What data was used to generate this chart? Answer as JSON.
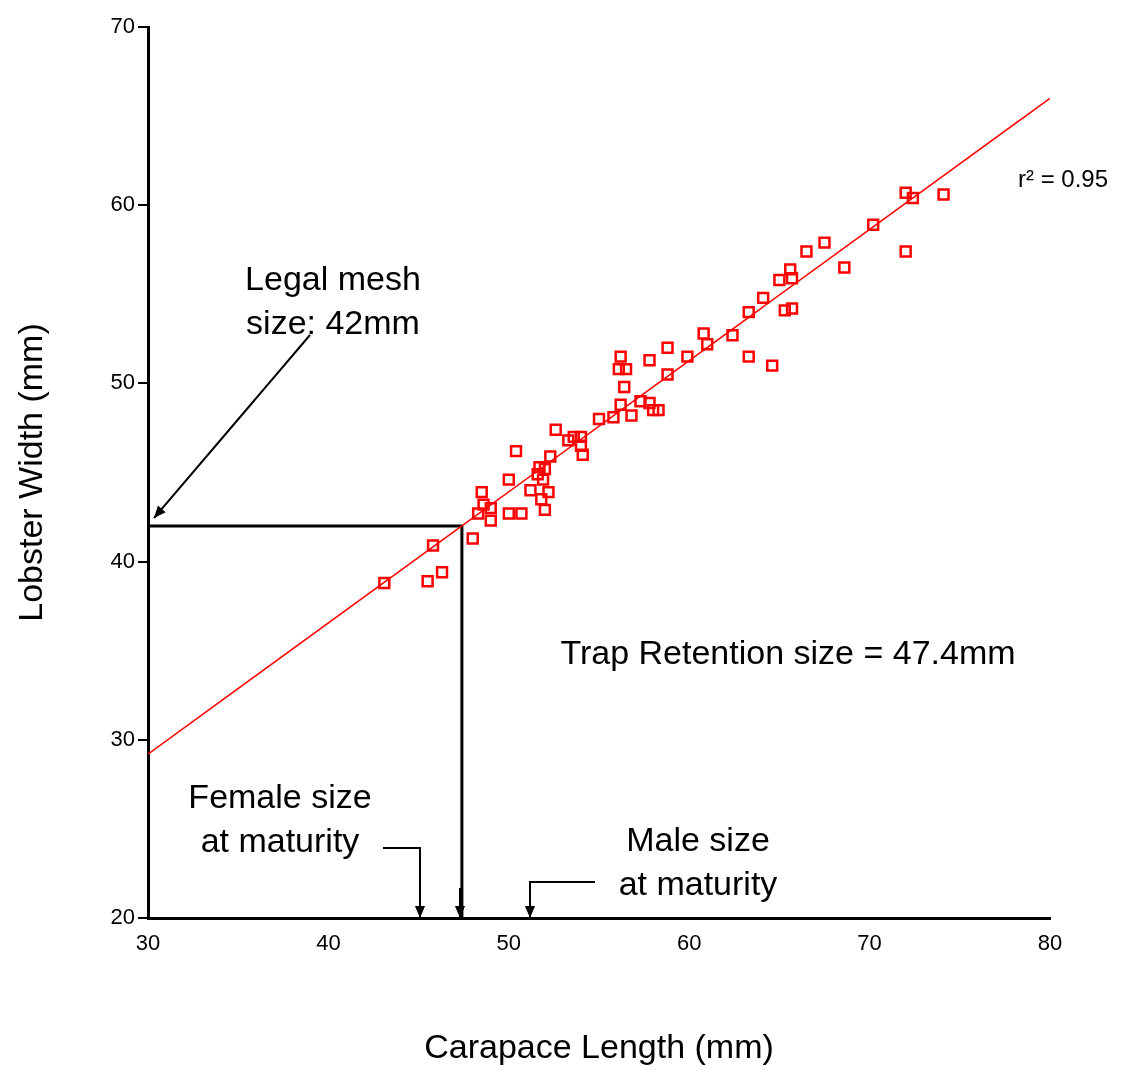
{
  "chart_data": {
    "type": "scatter",
    "xlabel": "Carapace Length (mm)",
    "ylabel": "Lobster Width (mm)",
    "xlim": [
      30,
      80
    ],
    "xticks": [
      30,
      40,
      50,
      60,
      70,
      80
    ],
    "ylim": [
      20,
      70
    ],
    "yticks": [
      20,
      30,
      40,
      50,
      60,
      70
    ],
    "grid": false,
    "legend": false,
    "series": [
      {
        "type": "scatter",
        "color": "#ff0000",
        "marker": "square",
        "x": [
          43.1,
          45.5,
          45.8,
          46.3,
          48.0,
          48.3,
          48.5,
          48.6,
          49.0,
          49.0,
          50.0,
          50.0,
          50.4,
          50.7,
          51.2,
          51.6,
          51.7,
          51.8,
          51.9,
          52.0,
          52.0,
          52.2,
          52.3,
          52.6,
          53.3,
          53.6,
          54.0,
          54.0,
          54.1,
          55.0,
          55.8,
          56.1,
          56.2,
          56.4,
          56.5,
          56.2,
          56.8,
          57.3,
          57.8,
          57.8,
          58.0,
          58.3,
          58.8,
          58.8,
          59.9,
          60.8,
          61.0,
          62.4,
          63.3,
          63.3,
          64.1,
          64.6,
          65.0,
          65.3,
          65.6,
          65.7,
          65.7,
          66.5,
          67.5,
          68.6,
          70.2,
          72.0,
          72.0,
          72.4,
          74.1
        ],
        "values": [
          38.8,
          38.9,
          40.9,
          39.4,
          41.3,
          42.7,
          43.9,
          43.2,
          42.3,
          43.0,
          44.6,
          42.7,
          46.2,
          42.7,
          44.0,
          44.9,
          45.3,
          43.5,
          44.6,
          42.9,
          45.2,
          43.9,
          45.9,
          47.4,
          46.8,
          47.0,
          47.0,
          46.5,
          46.0,
          48.0,
          48.1,
          50.8,
          51.5,
          49.8,
          50.8,
          48.8,
          48.2,
          49.0,
          51.3,
          48.9,
          48.5,
          48.5,
          50.5,
          52.0,
          51.5,
          52.8,
          52.2,
          52.7,
          54.0,
          51.5,
          54.8,
          51.0,
          55.8,
          54.1,
          56.4,
          54.2,
          55.9,
          57.4,
          57.9,
          56.5,
          58.9,
          60.7,
          57.4,
          60.4,
          60.6
        ]
      },
      {
        "type": "line",
        "color": "#ff0000",
        "marker": "none",
        "x": [
          30,
          80
        ],
        "values": [
          29.2,
          66.0
        ]
      },
      {
        "type": "line",
        "color": "#000000",
        "marker": "none",
        "x": [
          30,
          47.4,
          47.4
        ],
        "values": [
          42,
          42,
          20
        ]
      }
    ],
    "annotations": [
      "Legal mesh\nsize: 42mm",
      "Trap Retention size = 47.4mm",
      "Female size\nat maturity",
      "Male size\nat maturity",
      "r² = 0.95"
    ]
  }
}
